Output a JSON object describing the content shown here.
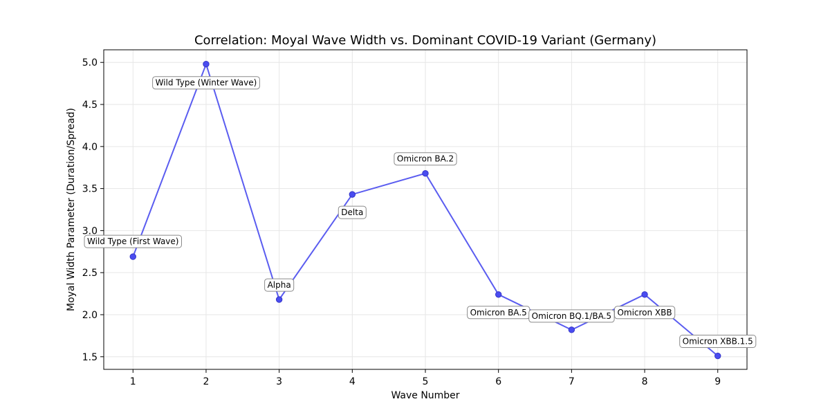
{
  "chart_data": {
    "type": "line",
    "title": "Correlation: Moyal Wave Width vs. Dominant COVID-19 Variant (Germany)",
    "xlabel": "Wave Number",
    "ylabel": "Moyal Width Parameter (Duration/Spread)",
    "x": [
      1,
      2,
      3,
      4,
      5,
      6,
      7,
      8,
      9
    ],
    "values": [
      2.69,
      4.98,
      2.18,
      3.43,
      3.68,
      2.24,
      1.82,
      2.24,
      1.51
    ],
    "annotations": [
      "Wild Type (First Wave)",
      "Wild Type (Winter Wave)",
      "Alpha",
      "Delta",
      "Omicron BA.2",
      "Omicron BA.5",
      "Omicron BQ.1/BA.5",
      "Omicron XBB",
      "Omicron XBB.1.5"
    ],
    "xlim": [
      0.6,
      9.4
    ],
    "ylim": [
      1.35,
      5.15
    ],
    "xticks": [
      "1",
      "2",
      "3",
      "4",
      "5",
      "6",
      "7",
      "8",
      "9"
    ],
    "yticks": [
      "1.5",
      "2.0",
      "2.5",
      "3.0",
      "3.5",
      "4.0",
      "4.5",
      "5.0"
    ],
    "grid": true,
    "line_color": "#5a5cf0",
    "marker_color": "#4a4cf0"
  }
}
